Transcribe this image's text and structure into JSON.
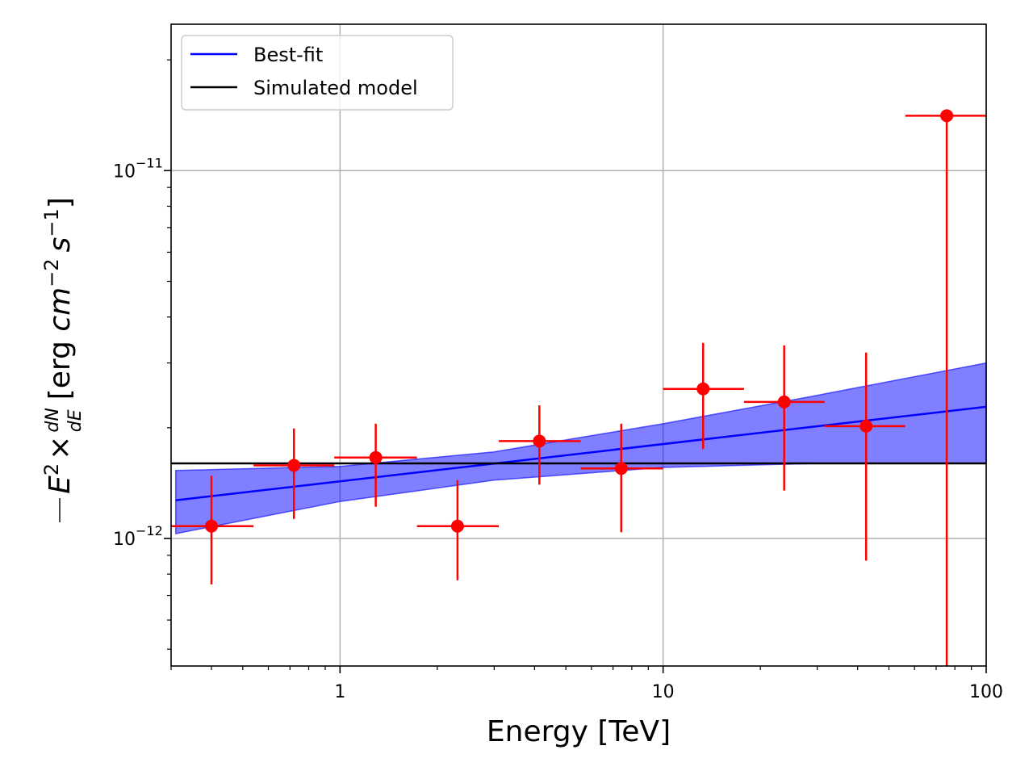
{
  "chart_data": {
    "type": "scatter",
    "title": "",
    "xlabel": "Energy [TeV]",
    "ylabel": {
      "prefix": "E",
      "sup1": "2",
      "times": "×",
      "frac_num": "dN",
      "frac_den": "dE",
      "units_open": "[erg ",
      "cm": "cm",
      "cm_exp": "−2",
      "s": "s",
      "s_exp": "−1",
      "units_close": "]"
    },
    "x_scale": "log",
    "y_scale": "log",
    "xlim": [
      0.3,
      100
    ],
    "ylim": [
      4.5e-13,
      2.5e-11
    ],
    "grid": true,
    "legend_position": "top-left",
    "x_ticks": [
      {
        "value": 1,
        "label": "1"
      },
      {
        "value": 10,
        "label": "10"
      },
      {
        "value": 100,
        "label": "100"
      }
    ],
    "y_ticks": [
      {
        "value": 1e-12,
        "base": "10",
        "exp": "−12"
      },
      {
        "value": 1e-11,
        "base": "10",
        "exp": "−11"
      }
    ],
    "series": [
      {
        "name": "Best-fit",
        "kind": "line",
        "color": "#0000ff",
        "x": [
          0.31,
          100
        ],
        "y": [
          1.27e-12,
          2.28e-12
        ],
        "band": {
          "color": "#0000ff",
          "opacity": 0.5,
          "x": [
            0.31,
            1,
            3,
            10,
            30,
            100
          ],
          "upper": [
            1.53e-12,
            1.57e-12,
            1.72e-12,
            2.05e-12,
            2.45e-12,
            3e-12
          ],
          "lower": [
            1.03e-12,
            1.26e-12,
            1.44e-12,
            1.56e-12,
            1.6e-12,
            1.6e-12
          ]
        }
      },
      {
        "name": "Simulated model",
        "kind": "line",
        "color": "#000000",
        "x": [
          0.3,
          100
        ],
        "y": [
          1.6e-12,
          1.6e-12
        ]
      },
      {
        "name": "",
        "kind": "errorbar",
        "color": "#ff0000",
        "points": [
          {
            "x": 0.4,
            "xlo": 0.3,
            "xhi": 0.54,
            "y": 1.08e-12,
            "ylo": 7.5e-13,
            "yhi": 1.48e-12
          },
          {
            "x": 0.72,
            "xlo": 0.54,
            "xhi": 0.96,
            "y": 1.58e-12,
            "ylo": 1.13e-12,
            "yhi": 1.99e-12
          },
          {
            "x": 1.29,
            "xlo": 0.96,
            "xhi": 1.73,
            "y": 1.66e-12,
            "ylo": 1.22e-12,
            "yhi": 2.05e-12
          },
          {
            "x": 2.31,
            "xlo": 1.73,
            "xhi": 3.1,
            "y": 1.08e-12,
            "ylo": 7.7e-13,
            "yhi": 1.44e-12
          },
          {
            "x": 4.14,
            "xlo": 3.1,
            "xhi": 5.56,
            "y": 1.84e-12,
            "ylo": 1.4e-12,
            "yhi": 2.3e-12
          },
          {
            "x": 7.42,
            "xlo": 5.56,
            "xhi": 10,
            "y": 1.55e-12,
            "ylo": 1.04e-12,
            "yhi": 2.05e-12
          },
          {
            "x": 13.3,
            "xlo": 10,
            "xhi": 17.8,
            "y": 2.55e-12,
            "ylo": 1.75e-12,
            "yhi": 3.4e-12
          },
          {
            "x": 23.7,
            "xlo": 17.8,
            "xhi": 31.6,
            "y": 2.35e-12,
            "ylo": 1.35e-12,
            "yhi": 3.35e-12
          },
          {
            "x": 42.5,
            "xlo": 31.6,
            "xhi": 56.2,
            "y": 2.02e-12,
            "ylo": 8.7e-13,
            "yhi": 3.2e-12
          },
          {
            "x": 75.5,
            "xlo": 56.2,
            "xhi": 100,
            "y": 1.41e-11,
            "ylo": 4.5e-13,
            "yhi": 1.41e-11
          }
        ]
      }
    ],
    "legend": [
      {
        "label": "Best-fit",
        "color": "#0000ff"
      },
      {
        "label": "Simulated model",
        "color": "#000000"
      }
    ]
  }
}
